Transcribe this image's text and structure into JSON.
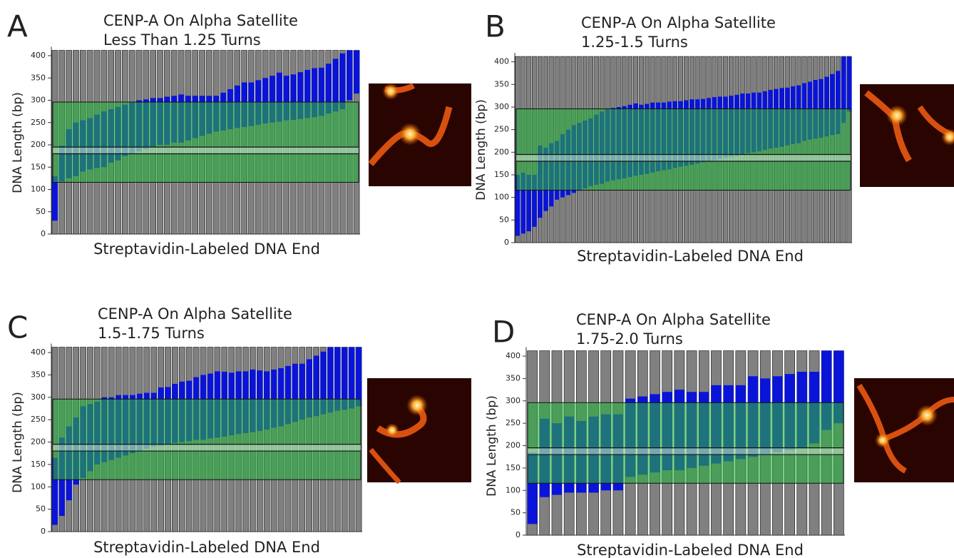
{
  "chart_data": [
    {
      "type": "range-bar",
      "panel": "A",
      "title": "CENP-A On Alpha Satellite",
      "subtitle": "Less Than 1.25 Turns",
      "x_label": "Streptavidin-Labeled DNA End",
      "y_label": "DNA Length (bp)",
      "ylim": [
        0,
        420
      ],
      "yticks": [
        0,
        50,
        100,
        150,
        200,
        250,
        300,
        350,
        400
      ],
      "dna_length": 412,
      "region": [
        116,
        296
      ],
      "band": [
        180,
        195
      ],
      "colors": {
        "dna": "#808080",
        "nucleosome": "#0a14d8",
        "region": "#2ab040"
      },
      "starts": [
        30,
        118,
        125,
        130,
        140,
        145,
        148,
        150,
        160,
        165,
        175,
        180,
        185,
        190,
        195,
        200,
        200,
        205,
        205,
        210,
        215,
        220,
        225,
        230,
        232,
        235,
        238,
        240,
        242,
        245,
        248,
        250,
        252,
        255,
        256,
        258,
        260,
        262,
        265,
        270,
        275,
        280,
        300,
        315
      ],
      "lengths": [
        100,
        80,
        110,
        120,
        115,
        115,
        120,
        125,
        120,
        120,
        115,
        115,
        115,
        112,
        110,
        105,
        108,
        105,
        108,
        100,
        95,
        90,
        85,
        80,
        85,
        90,
        95,
        100,
        98,
        100,
        102,
        105,
        110,
        100,
        102,
        105,
        108,
        110,
        108,
        112,
        118,
        125,
        112,
        97
      ]
    },
    {
      "type": "range-bar",
      "panel": "B",
      "title": "CENP-A On Alpha Satellite",
      "subtitle": "1.25-1.5 Turns",
      "x_label": "Streptavidin-Labeled DNA End",
      "y_label": "DNA Length (bp)",
      "ylim": [
        0,
        420
      ],
      "yticks": [
        0,
        50,
        100,
        150,
        200,
        250,
        300,
        350,
        400
      ],
      "dna_length": 412,
      "region": [
        116,
        296
      ],
      "band": [
        180,
        195
      ],
      "colors": {
        "dna": "#808080",
        "nucleosome": "#0a14d8",
        "region": "#2ab040"
      },
      "starts": [
        15,
        20,
        25,
        35,
        55,
        70,
        80,
        95,
        100,
        105,
        110,
        115,
        120,
        125,
        128,
        130,
        135,
        138,
        140,
        142,
        145,
        148,
        150,
        152,
        155,
        158,
        160,
        162,
        165,
        168,
        170,
        172,
        175,
        178,
        180,
        182,
        185,
        188,
        190,
        192,
        195,
        198,
        200,
        202,
        205,
        208,
        210,
        212,
        215,
        218,
        220,
        225,
        228,
        230,
        232,
        235,
        238,
        240,
        265,
        290
      ],
      "lengths": [
        135,
        135,
        125,
        115,
        160,
        140,
        140,
        130,
        140,
        145,
        150,
        150,
        150,
        150,
        155,
        160,
        160,
        160,
        160,
        160,
        160,
        160,
        155,
        155,
        155,
        152,
        150,
        150,
        148,
        145,
        145,
        145,
        142,
        140,
        140,
        140,
        138,
        135,
        135,
        135,
        135,
        132,
        132,
        130,
        130,
        130,
        130,
        130,
        128,
        128,
        128,
        128,
        128,
        130,
        130,
        132,
        135,
        140,
        147,
        122
      ]
    },
    {
      "type": "range-bar",
      "panel": "C",
      "title": "CENP-A On Alpha Satellite",
      "subtitle": "1.5-1.75 Turns",
      "x_label": "Streptavidin-Labeled DNA End",
      "y_label": "DNA Length (bp)",
      "ylim": [
        0,
        420
      ],
      "yticks": [
        0,
        50,
        100,
        150,
        200,
        250,
        300,
        350,
        400
      ],
      "dna_length": 412,
      "region": [
        116,
        296
      ],
      "band": [
        180,
        195
      ],
      "colors": {
        "dna": "#808080",
        "nucleosome": "#0a14d8",
        "region": "#2ab040"
      },
      "starts": [
        15,
        35,
        70,
        105,
        120,
        135,
        150,
        155,
        160,
        165,
        170,
        175,
        180,
        185,
        190,
        192,
        195,
        198,
        200,
        202,
        205,
        205,
        208,
        210,
        212,
        215,
        218,
        220,
        222,
        225,
        228,
        232,
        235,
        240,
        245,
        250,
        255,
        258,
        262,
        266,
        270,
        272,
        275,
        280
      ],
      "lengths": [
        150,
        175,
        165,
        150,
        160,
        150,
        140,
        145,
        140,
        140,
        135,
        130,
        128,
        125,
        120,
        130,
        128,
        132,
        135,
        135,
        140,
        145,
        145,
        148,
        145,
        140,
        140,
        138,
        140,
        135,
        130,
        130,
        130,
        130,
        130,
        125,
        130,
        135,
        140,
        146,
        142,
        140,
        137,
        132
      ]
    },
    {
      "type": "range-bar",
      "panel": "D",
      "title": "CENP-A On Alpha Satellite",
      "subtitle": "1.75-2.0 Turns",
      "x_label": "Streptavidin-Labeled DNA End",
      "y_label": "DNA Length (bp)",
      "ylim": [
        0,
        420
      ],
      "yticks": [
        0,
        50,
        100,
        150,
        200,
        250,
        300,
        350,
        400
      ],
      "dna_length": 412,
      "region": [
        116,
        296
      ],
      "band": [
        180,
        195
      ],
      "colors": {
        "dna": "#808080",
        "nucleosome": "#0a14d8",
        "region": "#2ab040"
      },
      "starts": [
        25,
        85,
        90,
        95,
        95,
        95,
        100,
        100,
        130,
        135,
        140,
        145,
        145,
        150,
        155,
        160,
        165,
        170,
        175,
        180,
        185,
        190,
        195,
        205,
        235,
        250
      ],
      "lengths": [
        160,
        175,
        160,
        170,
        160,
        170,
        170,
        170,
        175,
        175,
        175,
        175,
        180,
        170,
        165,
        175,
        170,
        165,
        180,
        170,
        170,
        170,
        170,
        160,
        177,
        162
      ]
    }
  ]
}
